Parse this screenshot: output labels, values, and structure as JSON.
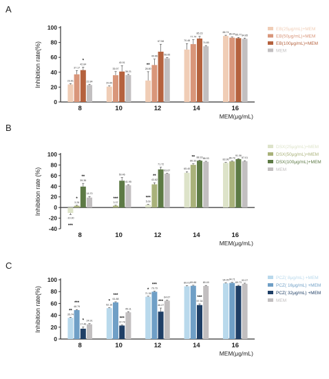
{
  "chart_data": [
    {
      "panel": "A",
      "type": "bar",
      "categories": [
        "8",
        "10",
        "12",
        "14",
        "16"
      ],
      "xlabel": "MEM(μg/mL)",
      "ylabel": "Inhibition rate(%)",
      "ylim": [
        0,
        100
      ],
      "yticks": [
        0,
        20,
        40,
        60,
        80,
        100
      ],
      "grid": false,
      "legend_position": "right",
      "series": [
        {
          "name": "EB(25μg/mL)+MEM",
          "color": "#f0cdb6",
          "values": [
            23.61,
            20.65,
            28.8,
            70.48,
            88.74
          ],
          "errors": [
            1,
            1,
            12,
            8,
            1
          ],
          "labels": [
            "23.61",
            "20.65",
            "28.80",
            "70.48",
            "88.74"
          ],
          "sig": [
            "",
            "",
            "**",
            "",
            ""
          ]
        },
        {
          "name": "EB(50μg/mL)+MEM",
          "color": "#d9967a",
          "values": [
            37.17,
            35.97,
            49.66,
            77.74,
            86.44
          ],
          "errors": [
            5,
            5,
            8,
            6,
            1
          ],
          "labels": [
            "37.17",
            "35.97",
            "49.66",
            "77.74",
            "86.44"
          ],
          "sig": [
            "",
            "",
            "",
            "",
            ""
          ]
        },
        {
          "name": "EB(100μg/mL)+MEM",
          "color": "#b5623e",
          "values": [
            42.84,
            40.91,
            67.58,
            85.23,
            85.77
          ],
          "errors": [
            4,
            8,
            10,
            3,
            1
          ],
          "labels": [
            "42.84",
            "40.91",
            "67.58",
            "85.23",
            "85.77"
          ],
          "sig": [
            "*",
            "",
            "",
            "",
            ""
          ]
        },
        {
          "name": "MEM",
          "color": "#c2bfc0",
          "values": [
            22.84,
            36.21,
            58.66,
            74.85,
            84.85
          ],
          "errors": [
            1,
            1,
            1,
            1,
            1
          ],
          "labels": [
            "22.84",
            "36.21",
            "58.66",
            "74.85",
            "84.85"
          ],
          "sig": [
            "",
            "",
            "",
            "",
            ""
          ]
        }
      ]
    },
    {
      "panel": "B",
      "type": "bar",
      "categories": [
        "8",
        "10",
        "12",
        "14",
        "16"
      ],
      "xlabel": "MEM(μg/mL)",
      "ylabel": "Inhibition rate (%)",
      "ylim": [
        -40,
        100
      ],
      "yticks": [
        -40,
        -20,
        0,
        20,
        40,
        60,
        80,
        100
      ],
      "grid": false,
      "legend_position": "right",
      "series": [
        {
          "name": "DSX(25μg/mL)+MEM",
          "color": "#dde3c9",
          "values": [
            -10.3,
            0,
            5.09,
            65.4,
            83.96
          ],
          "errors": [
            3,
            0,
            1,
            2,
            1
          ],
          "labels": [
            "-10.30",
            "",
            "5.09",
            "65.40",
            "83.96"
          ],
          "sig": [
            "***",
            "",
            "***",
            "",
            ""
          ]
        },
        {
          "name": "DSX(50μg/mL)+MEM",
          "color": "#a9b27a",
          "values": [
            3.28,
            3.37,
            43.62,
            80.33,
            86.78
          ],
          "errors": [
            1,
            1,
            3,
            2,
            1
          ],
          "labels": [
            "3.28",
            "3.37",
            "43.62",
            "80.33",
            "86.78"
          ],
          "sig": [
            "*",
            "***",
            "**",
            "**",
            ""
          ]
        },
        {
          "name": "DSX(100μg/mL)+MEM",
          "color": "#5d7a45",
          "values": [
            39.36,
            8.4,
            71.72,
            88.16,
            91.06
          ],
          "errors": [
            6,
            3,
            4,
            1,
            1
          ],
          "labels": [
            "39.36",
            "8.40",
            "71.72",
            "88.16",
            "91.06"
          ],
          "sig": [
            "**",
            "***",
            "",
            "",
            ""
          ]
        },
        {
          "name": "MEM",
          "color": "#c2bfc0",
          "values": [
            18.7,
            41.95,
            63.67,
            86.03,
            87.01
          ],
          "errors": [
            2,
            1,
            1,
            1,
            1
          ],
          "labels": [
            "18.70",
            "41.95",
            "63.67",
            "86.03",
            "87.01"
          ],
          "sig": [
            "",
            "",
            "",
            "",
            ""
          ]
        },
        {
          "name": "",
          "color": "#5d7a45",
          "values": [
            0,
            50.46,
            0,
            0,
            0
          ],
          "errors": [
            0,
            6,
            0,
            0,
            0
          ],
          "labels": [
            "",
            "50.46",
            "",
            "",
            ""
          ],
          "sig": [
            "",
            "",
            "",
            "",
            ""
          ],
          "overlay_of": 2
        }
      ]
    },
    {
      "panel": "C",
      "type": "bar",
      "categories": [
        "8",
        "10",
        "12",
        "14",
        "16"
      ],
      "xlabel": "MEM(μg/mL)",
      "ylabel": "Inhibition rate(%)",
      "ylim": [
        0,
        100
      ],
      "yticks": [
        0,
        20,
        40,
        60,
        80,
        100
      ],
      "grid": false,
      "legend_position": "right",
      "series": [
        {
          "name": "PCZ( 8μg/mL) +MEM",
          "color": "#b9d9ec",
          "values": [
            35.74,
            52.16,
            71.36,
            89.01,
            94.05
          ],
          "errors": [
            1,
            1,
            1,
            1,
            1
          ],
          "labels": [
            "35.74",
            "52.16",
            "71.36",
            "89.01",
            "94.05"
          ],
          "sig": [
            "**",
            "*",
            "*",
            "",
            ""
          ]
        },
        {
          "name": "PCZ( 16μg/mL) +MEM",
          "color": "#6f9fc6",
          "values": [
            48.79,
            61.88,
            79.79,
            89.88,
            94.71
          ],
          "errors": [
            1,
            1,
            1,
            1,
            1
          ],
          "labels": [
            "48.79",
            "61.88",
            "79.79",
            "89.88",
            "94.71"
          ],
          "sig": [
            "***",
            "***",
            "***",
            "",
            ""
          ]
        },
        {
          "name": "PCZ( 32μg/mL) +MEM",
          "color": "#1f3f66",
          "values": [
            17.46,
            22.78,
            46.27,
            57.34,
            89.73
          ],
          "errors": [
            3,
            1,
            6,
            2,
            1
          ],
          "labels": [
            "17.46",
            "22.78",
            "46.27",
            "57.34",
            "89.73"
          ],
          "sig": [
            "*",
            "***",
            "***",
            "***",
            ""
          ]
        },
        {
          "name": "MEM",
          "color": "#c2bfc0",
          "values": [
            24.91,
            45.11,
            64.67,
            89.49,
            93.27
          ],
          "errors": [
            1,
            1,
            1,
            1,
            1
          ],
          "labels": [
            "24.91",
            "45.11",
            "64.67",
            "89.49",
            "93.27"
          ],
          "sig": [
            "",
            "",
            "",
            "",
            ""
          ]
        }
      ]
    }
  ]
}
